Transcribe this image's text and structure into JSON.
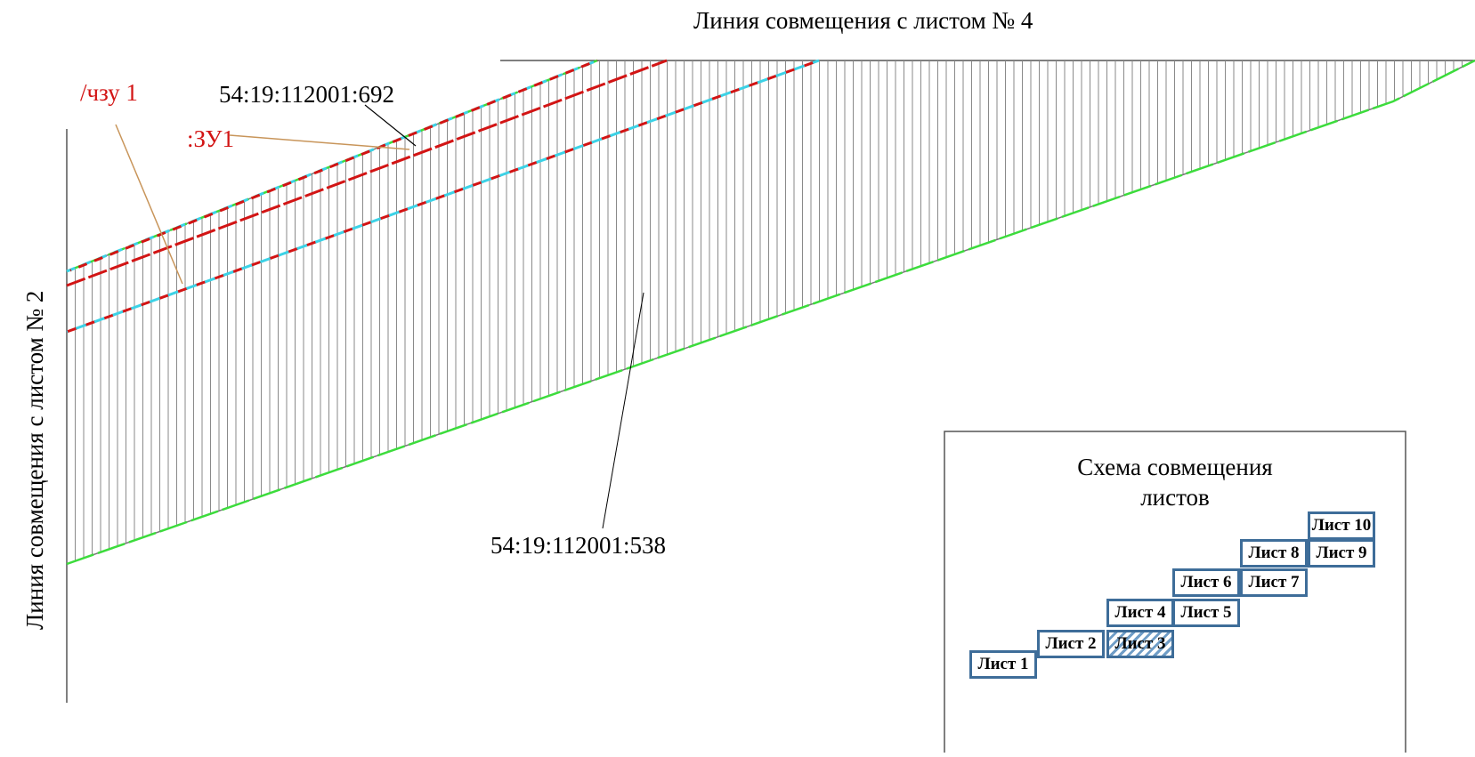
{
  "labels": {
    "top_match_line": "Линия совмещения с листом № 4",
    "left_match_line": "Линия совмещения с листом № 2",
    "parcel_692": "54:19:112001:692",
    "parcel_538": "54:19:112001:538",
    "chzu": "/чзу 1",
    "zu1": ":ЗУ1"
  },
  "scheme": {
    "title_line1": "Схема совмещения",
    "title_line2": "листов",
    "sheets": [
      "Лист 1",
      "Лист 2",
      "Лист 3",
      "Лист 4",
      "Лист 5",
      "Лист 6",
      "Лист 7",
      "Лист 8",
      "Лист 9",
      "Лист 10"
    ],
    "current_sheet": "Лист 3"
  },
  "colors": {
    "boundary_green": "#3cdc3c",
    "red_line": "#d21414",
    "cyan_line": "#3cd2e6",
    "hatch": "#8a8a8a",
    "sheet_border": "#3e6d99",
    "callout_line": "#c8955a",
    "red_text": "#d21414"
  }
}
